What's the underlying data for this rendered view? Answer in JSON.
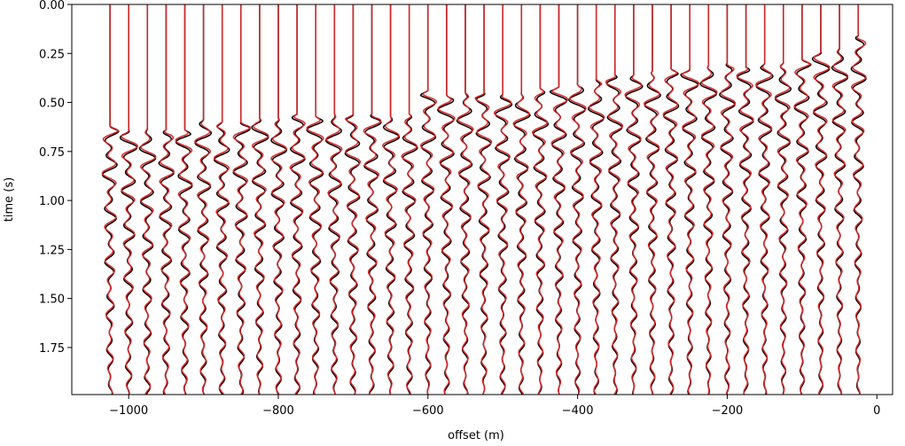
{
  "chart_data": {
    "type": "wiggle",
    "x_label": "offset (m)",
    "y_label": "time (s)",
    "x": [
      -1025,
      -1000,
      -975,
      -950,
      -925,
      -900,
      -875,
      -850,
      -825,
      -800,
      -775,
      -750,
      -725,
      -700,
      -675,
      -650,
      -625,
      -600,
      -575,
      -550,
      -525,
      -500,
      -475,
      -450,
      -425,
      -400,
      -375,
      -350,
      -325,
      -300,
      -275,
      -250,
      -225,
      -200,
      -175,
      -150,
      -125,
      -100,
      -75,
      -50,
      -25
    ],
    "series": [
      {
        "color": "#000000",
        "values": [
          0.62,
          0.64,
          0.63,
          0.64,
          0.64,
          0.58,
          0.6,
          0.6,
          0.58,
          0.58,
          0.56,
          0.57,
          0.56,
          0.56,
          0.56,
          0.57,
          0.56,
          0.44,
          0.46,
          0.45,
          0.45,
          0.46,
          0.45,
          0.43,
          0.42,
          0.4,
          0.38,
          0.36,
          0.36,
          0.34,
          0.33,
          0.33,
          0.31,
          0.3,
          0.32,
          0.3,
          0.3,
          0.28,
          0.24,
          0.22,
          0.16
        ]
      },
      {
        "color": "#d62728",
        "values": [
          0.62,
          0.64,
          0.63,
          0.64,
          0.64,
          0.58,
          0.6,
          0.6,
          0.58,
          0.58,
          0.56,
          0.57,
          0.56,
          0.56,
          0.56,
          0.57,
          0.56,
          0.44,
          0.46,
          0.45,
          0.45,
          0.46,
          0.45,
          0.43,
          0.42,
          0.4,
          0.38,
          0.36,
          0.36,
          0.34,
          0.33,
          0.33,
          0.31,
          0.3,
          0.32,
          0.3,
          0.3,
          0.28,
          0.24,
          0.22,
          0.16
        ]
      }
    ],
    "xlim": [
      -1076,
      21
    ],
    "ylim": [
      0,
      1.99
    ],
    "y_inverted": true,
    "xticks": [
      {
        "value": -1000,
        "label": "−1000"
      },
      {
        "value": -800,
        "label": "−800"
      },
      {
        "value": -600,
        "label": "−600"
      },
      {
        "value": -400,
        "label": "−400"
      },
      {
        "value": -200,
        "label": "−200"
      },
      0
    ],
    "yticks": [
      {
        "value": 0,
        "label": "0.00"
      },
      {
        "value": 0.25,
        "label": "0.25"
      },
      {
        "value": 0.5,
        "label": "0.50"
      },
      {
        "value": 0.75,
        "label": "0.75"
      },
      {
        "value": 1,
        "label": "1.00"
      },
      {
        "value": 1.25,
        "label": "1.25"
      },
      {
        "value": 1.5,
        "label": "1.50"
      },
      {
        "value": 1.75,
        "label": "1.75"
      }
    ]
  }
}
